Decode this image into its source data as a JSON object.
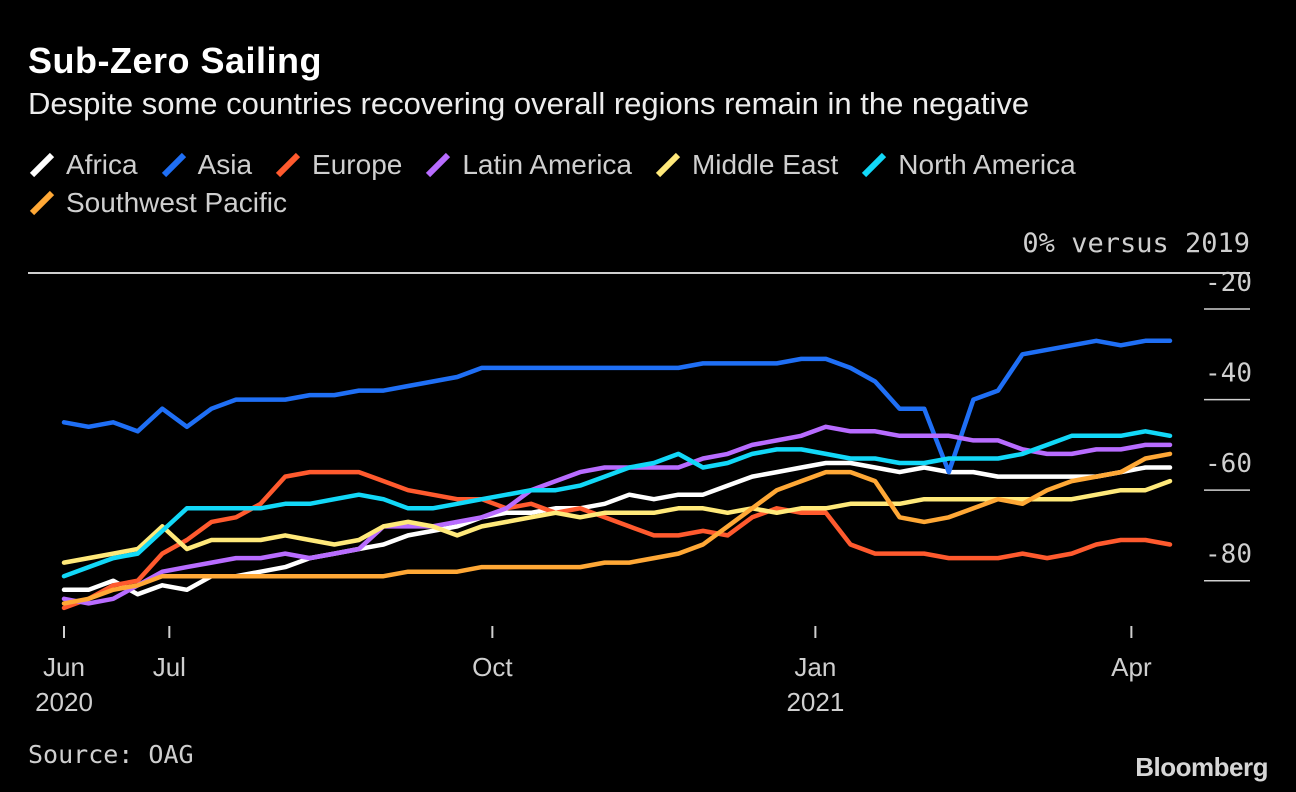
{
  "title": "Sub-Zero Sailing",
  "subtitle": "Despite some countries recovering overall regions remain in the negative",
  "unit_label": "0% versus 2019",
  "source": "Source: OAG",
  "logo": "Bloomberg",
  "chart_data": {
    "type": "line",
    "ylim": [
      -90,
      -18
    ],
    "y_ticks": [
      -20,
      -40,
      -60,
      -80
    ],
    "x_tick_labels": [
      {
        "date": "2020-06-01",
        "month": "Jun",
        "year": "2020"
      },
      {
        "date": "2020-07-01",
        "month": "Jul",
        "year": ""
      },
      {
        "date": "2020-10-01",
        "month": "Oct",
        "year": ""
      },
      {
        "date": "2021-01-01",
        "month": "Jan",
        "year": "2021"
      },
      {
        "date": "2021-04-01",
        "month": "Apr",
        "year": ""
      }
    ],
    "x": [
      "2020-06-01",
      "2020-06-08",
      "2020-06-15",
      "2020-06-22",
      "2020-06-29",
      "2020-07-06",
      "2020-07-13",
      "2020-07-20",
      "2020-07-27",
      "2020-08-03",
      "2020-08-10",
      "2020-08-17",
      "2020-08-24",
      "2020-08-31",
      "2020-09-07",
      "2020-09-14",
      "2020-09-21",
      "2020-09-28",
      "2020-10-05",
      "2020-10-12",
      "2020-10-19",
      "2020-10-26",
      "2020-11-02",
      "2020-11-09",
      "2020-11-16",
      "2020-11-23",
      "2020-11-30",
      "2020-12-07",
      "2020-12-14",
      "2020-12-21",
      "2020-12-28",
      "2021-01-04",
      "2021-01-11",
      "2021-01-18",
      "2021-01-25",
      "2021-02-01",
      "2021-02-08",
      "2021-02-15",
      "2021-02-22",
      "2021-03-01",
      "2021-03-08",
      "2021-03-15",
      "2021-03-22",
      "2021-03-29",
      "2021-04-05",
      "2021-04-12"
    ],
    "series": [
      {
        "name": "Africa",
        "color": "#ffffff",
        "values": [
          -82,
          -82,
          -80,
          -83,
          -81,
          -82,
          -79,
          -79,
          -78,
          -77,
          -75,
          -74,
          -73,
          -72,
          -70,
          -69,
          -68,
          -66,
          -65,
          -65,
          -64,
          -64,
          -63,
          -61,
          -62,
          -61,
          -61,
          -59,
          -57,
          -56,
          -55,
          -54,
          -54,
          -55,
          -56,
          -55,
          -56,
          -56,
          -57,
          -57,
          -57,
          -57,
          -57,
          -56,
          -55,
          -55
        ]
      },
      {
        "name": "Asia",
        "color": "#1f6ff5",
        "values": [
          -45,
          -46,
          -45,
          -47,
          -42,
          -46,
          -42,
          -40,
          -40,
          -40,
          -39,
          -39,
          -38,
          -38,
          -37,
          -36,
          -35,
          -33,
          -33,
          -33,
          -33,
          -33,
          -33,
          -33,
          -33,
          -33,
          -32,
          -32,
          -32,
          -32,
          -31,
          -31,
          -33,
          -36,
          -42,
          -42,
          -56,
          -40,
          -38,
          -30,
          -29,
          -28,
          -27,
          -28,
          -27,
          -27
        ]
      },
      {
        "name": "Europe",
        "color": "#ff5a2e",
        "values": [
          -86,
          -84,
          -81,
          -80,
          -74,
          -71,
          -67,
          -66,
          -63,
          -57,
          -56,
          -56,
          -56,
          -58,
          -60,
          -61,
          -62,
          -62,
          -64,
          -63,
          -65,
          -64,
          -66,
          -68,
          -70,
          -70,
          -69,
          -70,
          -66,
          -64,
          -65,
          -65,
          -72,
          -74,
          -74,
          -74,
          -75,
          -75,
          -75,
          -74,
          -75,
          -74,
          -72,
          -71,
          -71,
          -72
        ]
      },
      {
        "name": "Latin America",
        "color": "#b86cff",
        "values": [
          -84,
          -85,
          -84,
          -81,
          -78,
          -77,
          -76,
          -75,
          -75,
          -74,
          -75,
          -74,
          -73,
          -68,
          -68,
          -68,
          -67,
          -66,
          -64,
          -60,
          -58,
          -56,
          -55,
          -55,
          -55,
          -55,
          -53,
          -52,
          -50,
          -49,
          -48,
          -46,
          -47,
          -47,
          -48,
          -48,
          -48,
          -49,
          -49,
          -51,
          -52,
          -52,
          -51,
          -51,
          -50,
          -50
        ]
      },
      {
        "name": "Middle East",
        "color": "#ffe97a",
        "values": [
          -76,
          -75,
          -74,
          -73,
          -68,
          -73,
          -71,
          -71,
          -71,
          -70,
          -71,
          -72,
          -71,
          -68,
          -67,
          -68,
          -70,
          -68,
          -67,
          -66,
          -65,
          -66,
          -65,
          -65,
          -65,
          -64,
          -64,
          -65,
          -64,
          -65,
          -64,
          -64,
          -63,
          -63,
          -63,
          -62,
          -62,
          -62,
          -62,
          -62,
          -62,
          -62,
          -61,
          -60,
          -60,
          -58
        ]
      },
      {
        "name": "North America",
        "color": "#12d8f8",
        "values": [
          -79,
          -77,
          -75,
          -74,
          -69,
          -64,
          -64,
          -64,
          -64,
          -63,
          -63,
          -62,
          -61,
          -62,
          -64,
          -64,
          -63,
          -62,
          -61,
          -60,
          -60,
          -59,
          -57,
          -55,
          -54,
          -52,
          -55,
          -54,
          -52,
          -51,
          -51,
          -52,
          -53,
          -53,
          -54,
          -54,
          -53,
          -53,
          -53,
          -52,
          -50,
          -48,
          -48,
          -48,
          -47,
          -48
        ]
      },
      {
        "name": "Southwest Pacific",
        "color": "#ffa836",
        "values": [
          -85,
          -84,
          -82,
          -81,
          -79,
          -79,
          -79,
          -79,
          -79,
          -79,
          -79,
          -79,
          -79,
          -79,
          -78,
          -78,
          -78,
          -77,
          -77,
          -77,
          -77,
          -77,
          -76,
          -76,
          -75,
          -74,
          -72,
          -68,
          -64,
          -60,
          -58,
          -56,
          -56,
          -58,
          -66,
          -67,
          -66,
          -64,
          -62,
          -63,
          -60,
          -58,
          -57,
          -56,
          -53,
          -52
        ]
      }
    ]
  }
}
